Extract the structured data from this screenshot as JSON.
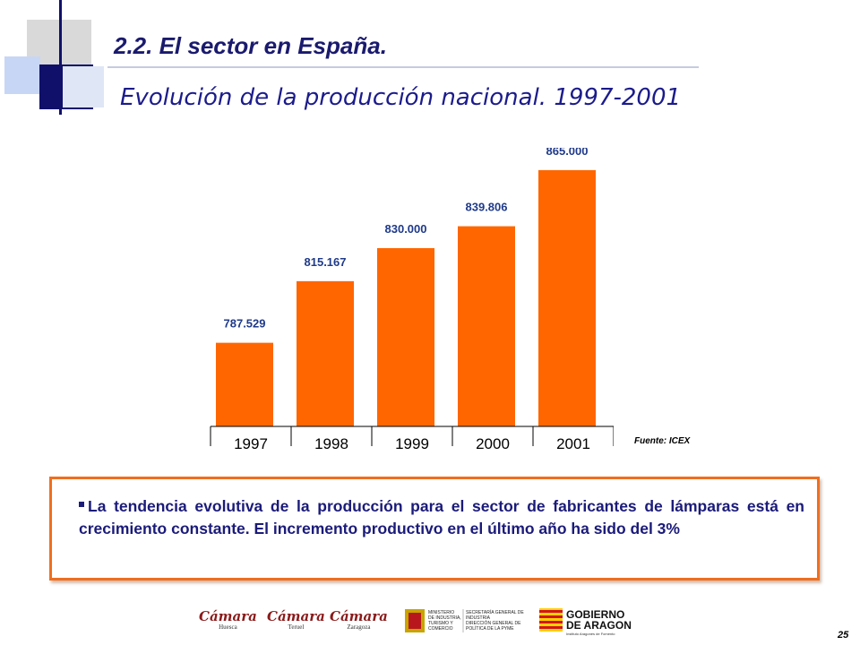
{
  "header": {
    "section_title": "2.2. El sector en España.",
    "subtitle": "Evolución de la producción nacional. 1997-2001"
  },
  "chart_data": {
    "type": "bar",
    "categories": [
      "1997",
      "1998",
      "1999",
      "2000",
      "2001"
    ],
    "values": [
      787529,
      815167,
      830000,
      839806,
      865000
    ],
    "data_labels": [
      "787.529",
      "815.167",
      "830.000",
      "839.806",
      "865.000"
    ],
    "bar_color": "#ff6600",
    "label_color": "#1f3a8a",
    "ylim": [
      750000,
      875000
    ],
    "grid": false,
    "legend": "none"
  },
  "source_note": "Fuente: ICEX",
  "summary": {
    "text": "La tendencia evolutiva de la producción para el sector de fabricantes de lámparas está en crecimiento constante. El incremento productivo en el último año ha sido del 3%"
  },
  "footer": {
    "logos": [
      {
        "word": "Cámara",
        "city": "Huesca"
      },
      {
        "word": "Cámara",
        "city": "Teruel"
      },
      {
        "word": "Cámara",
        "city": "Zaragoza"
      }
    ],
    "ministerio_lines": [
      "MINISTERIO",
      "DE INDUSTRIA,",
      "TURISMO Y",
      "COMERCIO"
    ],
    "secretaria_lines": [
      "SECRETARÍA GENERAL DE",
      "INDUSTRIA",
      "DIRECCIÓN GENERAL DE",
      "POLÍTICA DE LA PYME"
    ],
    "gobierno_line1": "GOBIERNO",
    "gobierno_line2": "DE ARAGON",
    "gobierno_line3": "Instituto Aragonés de Fomento",
    "page_number": "25"
  },
  "colors": {
    "accent_orange": "#f06e1e",
    "navy": "#1a1a6e"
  }
}
